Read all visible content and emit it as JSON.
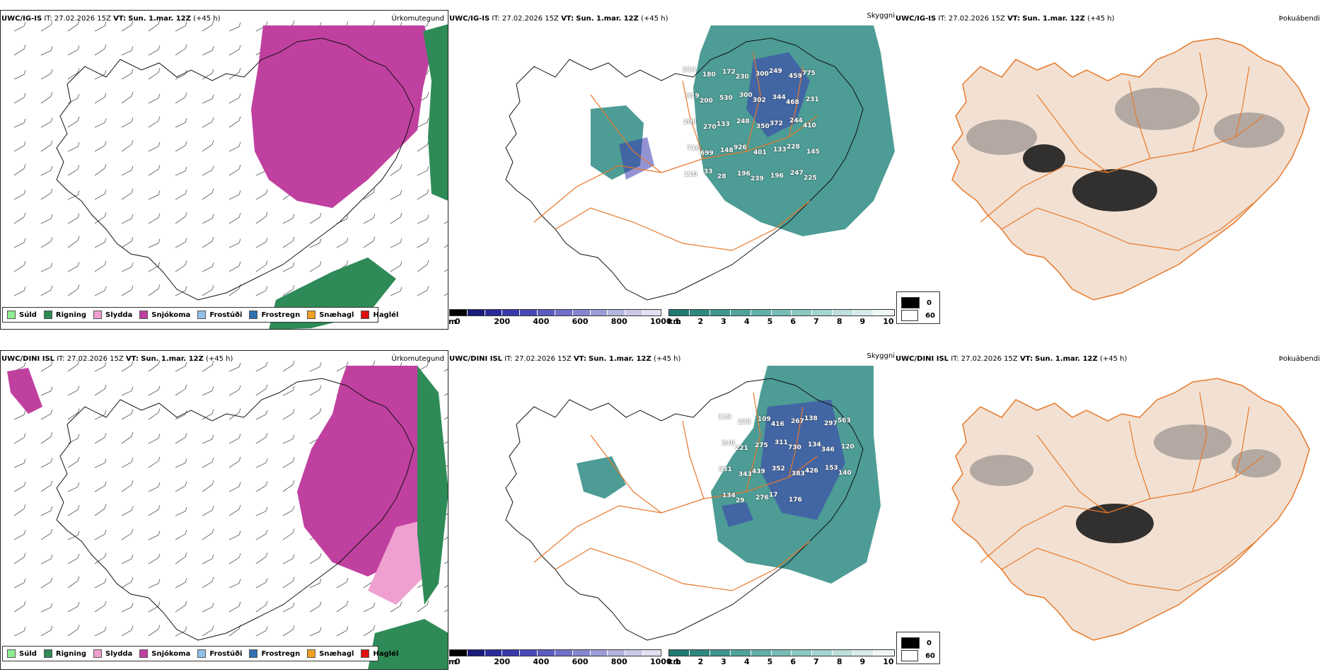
{
  "rows": [
    {
      "id": "top",
      "precip": {
        "model": "UWC/IG-IS",
        "it_label": "IT:",
        "it": "27.02.2026 15Z",
        "vt_label": "VT:",
        "vt": "Sun. 1.mar. 12Z",
        "lead": "(+45 h)",
        "title": "Úrkomutegund"
      },
      "cloud": {
        "model": "UWC/IG-IS",
        "it_label": "IT:",
        "it": "27.02.2026 15Z",
        "vt_label": "VT:",
        "vt": "Sun. 1.mar. 12Z",
        "lead": "(+45 h)",
        "title": "Skyggni",
        "numbers": [
          "214",
          "180",
          "172",
          "230",
          "300",
          "249",
          "459",
          "775",
          "319",
          "200",
          "530",
          "300",
          "302",
          "344",
          "468",
          "231",
          "208",
          "270",
          "133",
          "248",
          "350",
          "372",
          "244",
          "410",
          "716",
          "699",
          "148",
          "926",
          "401",
          "133",
          "228",
          "145",
          "110",
          "33",
          "28",
          "196",
          "239",
          "196",
          "247",
          "225"
        ]
      },
      "fog": {
        "model": "UWC/IG-IS",
        "it_label": "IT:",
        "it": "27.02.2026 15Z",
        "vt_label": "VT:",
        "vt": "Sun. 1.mar. 12Z",
        "lead": "(+45 h)",
        "title": "Þokuábendi"
      }
    },
    {
      "id": "bottom",
      "precip": {
        "model": "UWC/DINI ISL",
        "it_label": "IT:",
        "it": "27.02.2026 15Z",
        "vt_label": "VT:",
        "vt": "Sun. 1.mar. 12Z",
        "lead": "(+45 h)",
        "title": "Úrkomutegund"
      },
      "cloud": {
        "model": "UWC/DINI ISL",
        "it_label": "IT:",
        "it": "27.02.2026 15Z",
        "vt_label": "VT:",
        "vt": "Sun. 1.mar. 12Z",
        "lead": "(+45 h)",
        "title": "Skyggni",
        "numbers": [
          "119",
          "233",
          "109",
          "416",
          "267",
          "138",
          "297",
          "563",
          "240",
          "221",
          "275",
          "311",
          "730",
          "134",
          "346",
          "120",
          "931",
          "343",
          "439",
          "352",
          "383",
          "426",
          "153",
          "140",
          "134",
          "29",
          "276",
          "17",
          "176"
        ]
      },
      "fog": {
        "model": "UWC/DINI ISL",
        "it_label": "IT:",
        "it": "27.02.2026 15Z",
        "vt_label": "VT:",
        "vt": "Sun. 1.mar. 12Z",
        "lead": "(+45 h)",
        "title": "Þokuábendi"
      }
    }
  ],
  "precip_legend": [
    {
      "label": "Súld",
      "color": "#90ee90"
    },
    {
      "label": "Rigning",
      "color": "#2e8b57"
    },
    {
      "label": "Slydda",
      "color": "#f0a0d0"
    },
    {
      "label": "Snjókoma",
      "color": "#c040a0"
    },
    {
      "label": "Frostúði",
      "color": "#90c0e8"
    },
    {
      "label": "Frostregn",
      "color": "#3070b0"
    },
    {
      "label": "Snæhagl",
      "color": "#f0a020"
    },
    {
      "label": "Haglél",
      "color": "#e01010"
    }
  ],
  "cloudbase_bar": {
    "unit": "m",
    "ticks": [
      "0",
      "200",
      "400",
      "600",
      "800",
      "1000"
    ],
    "colors": [
      "#000000",
      "#1a1a7a",
      "#2a2a9a",
      "#3838aa",
      "#4848b8",
      "#5c5cc0",
      "#7070c8",
      "#8686d0",
      "#9c9cd8",
      "#b4b4e0",
      "#cacae8",
      "#e0e0f0"
    ]
  },
  "visibility_bar": {
    "unit": "km",
    "ticks": [
      "1",
      "2",
      "3",
      "4",
      "5",
      "6",
      "7",
      "8",
      "9",
      "10"
    ],
    "colors": [
      "#1f7a72",
      "#2f8880",
      "#3f968e",
      "#50a39b",
      "#62b0a8",
      "#76bcb5",
      "#8cc8c2",
      "#a4d4cf",
      "#bde0dc",
      "#d6ebe9",
      "#f0f7f6"
    ]
  },
  "fog_legend": [
    {
      "label": "0",
      "color": "#000000"
    },
    {
      "label": "60",
      "color": "#ffffff"
    }
  ],
  "colors": {
    "land_fill": "#f2e1d3",
    "road": "#e8782a",
    "coast": "#111111",
    "river": "#8fa8f0",
    "snow": "#c040a0",
    "rain": "#2e8b57",
    "sleet": "#f0a0d0",
    "drizzle": "#90ee90",
    "vis_teal": "#2e8b83",
    "ceiling_blue": "#3b3bb0"
  }
}
